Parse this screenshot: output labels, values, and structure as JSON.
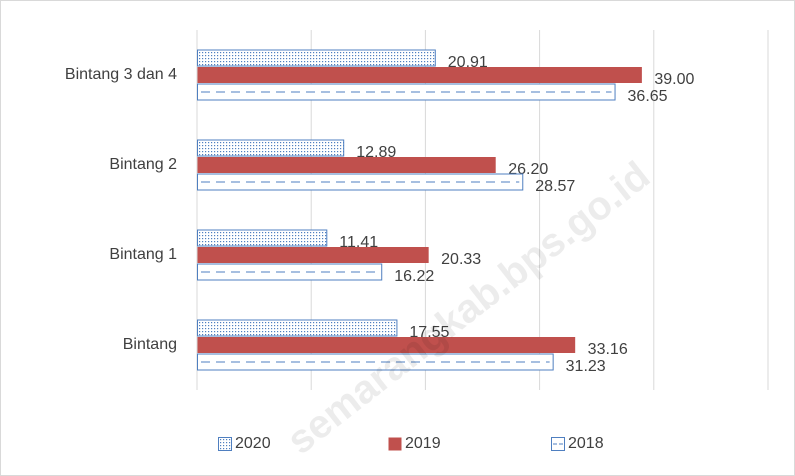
{
  "chart_data": {
    "type": "hbar",
    "categories": [
      "Bintang 3 dan 4",
      "Bintang 2",
      "Bintang 1",
      "Bintang"
    ],
    "series": [
      {
        "name": "2020",
        "color": "#4f7fc0",
        "pattern": "dots",
        "values": [
          20.91,
          12.89,
          11.41,
          17.55
        ],
        "value_labels": [
          "20.91",
          "12.89",
          "11.41",
          "17.55"
        ]
      },
      {
        "name": "2019",
        "color": "#c0504d",
        "pattern": "solid",
        "values": [
          39,
          26.2,
          20.33,
          33.16
        ],
        "value_labels": [
          "39.00",
          "26.20",
          "20.33",
          "33.16"
        ]
      },
      {
        "name": "2018",
        "color": "#4f7fc0",
        "pattern": "dashes",
        "values": [
          36.65,
          28.57,
          16.22,
          31.23
        ],
        "value_labels": [
          "36.65",
          "28.57",
          "16.22",
          "31.23"
        ]
      }
    ],
    "xlim": [
      0,
      50
    ],
    "xticks": [
      0,
      10,
      20,
      30,
      40,
      50
    ],
    "grid": true,
    "legend": "bottom",
    "watermark": "semarangkab.bps.go.id"
  }
}
